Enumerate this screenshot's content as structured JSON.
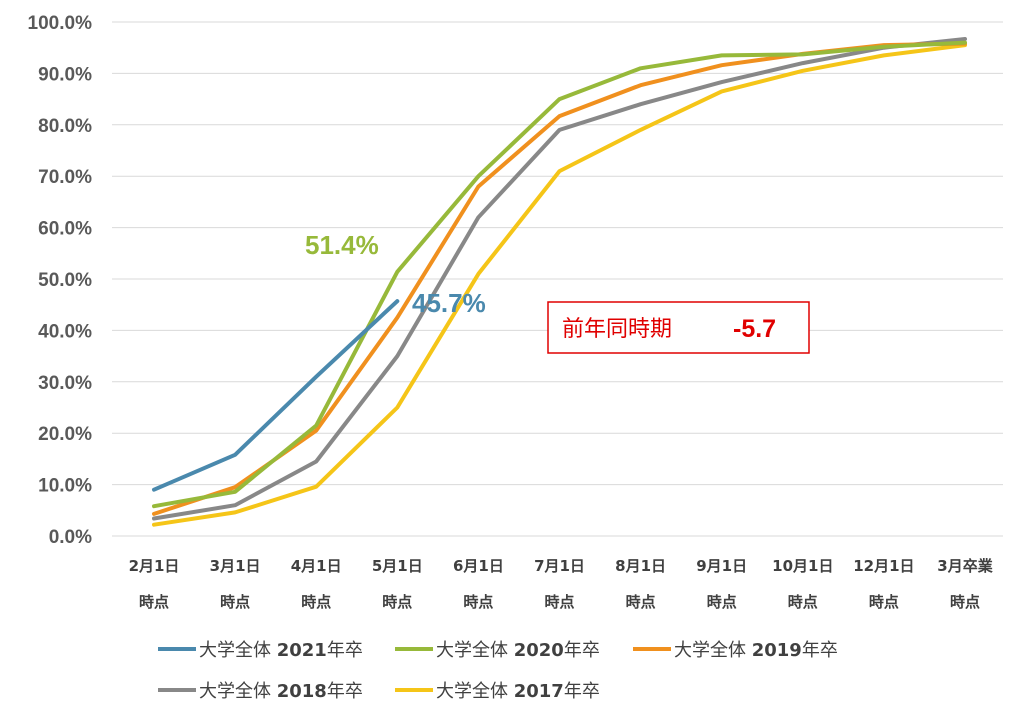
{
  "chart_data": {
    "type": "line",
    "ylim": [
      0,
      100
    ],
    "y_tick_labels": [
      "0.0%",
      "10.0%",
      "20.0%",
      "30.0%",
      "40.0%",
      "50.0%",
      "60.0%",
      "70.0%",
      "80.0%",
      "90.0%",
      "100.0%"
    ],
    "categories": [
      [
        "2月1日",
        "時点"
      ],
      [
        "3月1日",
        "時点"
      ],
      [
        "4月1日",
        "時点"
      ],
      [
        "5月1日",
        "時点"
      ],
      [
        "6月1日",
        "時点"
      ],
      [
        "7月1日",
        "時点"
      ],
      [
        "8月1日",
        "時点"
      ],
      [
        "9月1日",
        "時点"
      ],
      [
        "10月1日",
        "時点"
      ],
      [
        "12月1日",
        "時点"
      ],
      [
        "3月卒業",
        "時点"
      ]
    ],
    "grid": true,
    "legend_position": "bottom",
    "series": [
      {
        "name": "大学全体 2021年卒",
        "color": "#4a89ad",
        "values": [
          9.0,
          15.8,
          31.0,
          45.7,
          null,
          null,
          null,
          null,
          null,
          null,
          null
        ]
      },
      {
        "name": "大学全体 2020年卒",
        "color": "#97b93a",
        "values": [
          5.8,
          8.6,
          21.5,
          51.4,
          70.0,
          85.0,
          91.0,
          93.5,
          93.7,
          95.2,
          96.0
        ]
      },
      {
        "name": "大学全体 2019年卒",
        "color": "#f0901e",
        "values": [
          4.3,
          9.5,
          20.5,
          42.5,
          68.0,
          81.7,
          87.7,
          91.6,
          93.8,
          95.5,
          95.8
        ]
      },
      {
        "name": "大学全体 2018年卒",
        "color": "#888888",
        "values": [
          3.4,
          6.0,
          14.5,
          35.0,
          62.0,
          79.0,
          84.0,
          88.3,
          92.0,
          95.0,
          96.7
        ]
      },
      {
        "name": "大学全体 2017年卒",
        "color": "#f5c518",
        "values": [
          2.2,
          4.6,
          9.6,
          25.0,
          51.0,
          71.0,
          79.0,
          86.5,
          90.5,
          93.5,
          95.5
        ]
      }
    ],
    "annotations": [
      {
        "text": "51.4%",
        "color": "#97b93a"
      },
      {
        "text": "45.7%",
        "color": "#4a89ad"
      }
    ],
    "callout": {
      "label": "前年同時期",
      "value": "-5.7",
      "color": "#e00000"
    }
  }
}
